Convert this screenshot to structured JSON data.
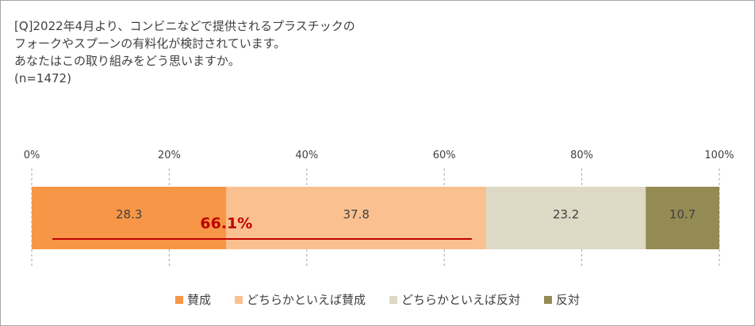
{
  "question": {
    "lines": [
      "[Q]2022年4月より、コンビニなどで提供されるプラスチックの",
      "フォークやスプーンの有料化が検討されています。",
      "あなたはこの取り組みをどう思いますか。",
      "(n=1472)"
    ]
  },
  "chart_data": {
    "type": "bar",
    "orientation": "horizontal-stacked",
    "xlim": [
      0,
      100
    ],
    "x_ticks": [
      "0%",
      "20%",
      "40%",
      "60%",
      "80%",
      "100%"
    ],
    "grid": true,
    "legend_position": "bottom",
    "series": [
      {
        "name": "賛成",
        "value": 28.3,
        "label": "28.3",
        "color": "#F79646"
      },
      {
        "name": "どちらかといえば賛成",
        "value": 37.8,
        "label": "37.8",
        "color": "#FAC090"
      },
      {
        "name": "どちらかといえば反対",
        "value": 23.2,
        "label": "23.2",
        "color": "#DDD9C4"
      },
      {
        "name": "反対",
        "value": 10.7,
        "label": "10.7",
        "color": "#948A54"
      }
    ],
    "annotation": {
      "text": "66.1%",
      "color": "#C00000",
      "line_from": 3,
      "line_to": 64
    }
  }
}
